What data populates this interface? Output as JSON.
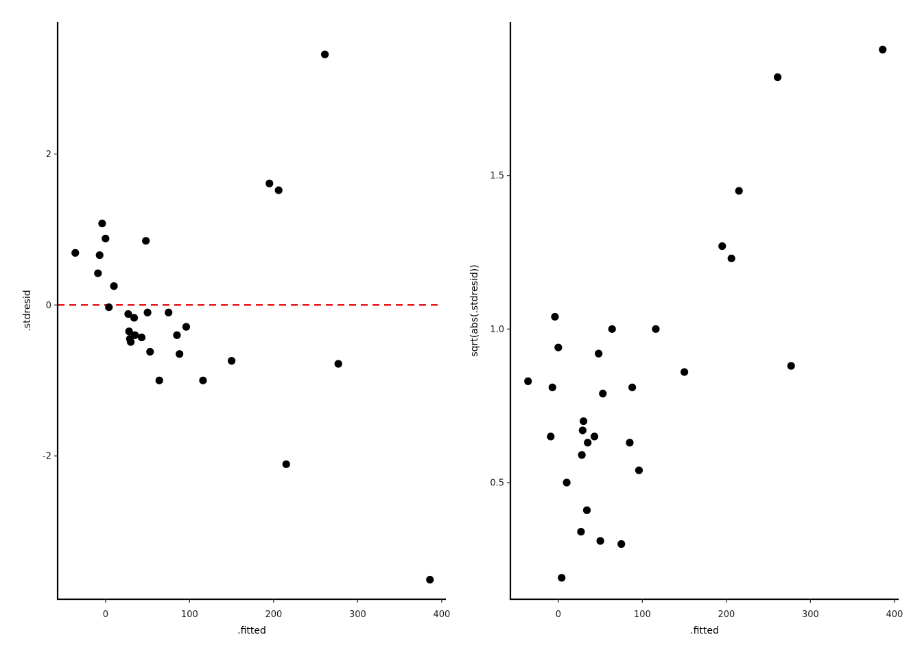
{
  "chart_data": [
    {
      "type": "scatter",
      "xlabel": ".fitted",
      "ylabel": ".stdresid",
      "xlim": [
        -57,
        405
      ],
      "ylim": [
        -3.9,
        3.75
      ],
      "xticks": [
        0,
        100,
        200,
        300,
        400
      ],
      "yticks": [
        -2,
        0,
        2
      ],
      "reference_line": {
        "y": 0,
        "style": "dashed",
        "color": "#e8181c"
      },
      "point_color": "#000000",
      "x": [
        -36,
        -9,
        -7,
        -4,
        0,
        4,
        10,
        27,
        28,
        29,
        30,
        34,
        35,
        43,
        48,
        50,
        53,
        64,
        75,
        85,
        88,
        96,
        116,
        150,
        195,
        206,
        215,
        261,
        277,
        386
      ],
      "y": [
        0.69,
        0.42,
        0.66,
        1.08,
        0.88,
        -0.03,
        0.25,
        -0.12,
        -0.35,
        -0.45,
        -0.49,
        -0.17,
        -0.4,
        -0.43,
        0.85,
        -0.1,
        -0.62,
        -1.0,
        -0.1,
        -0.4,
        -0.65,
        -0.29,
        -1.0,
        -0.74,
        1.61,
        1.52,
        -2.11,
        3.32,
        -0.78,
        -3.64
      ]
    },
    {
      "type": "scatter",
      "xlabel": ".fitted",
      "ylabel": "sqrt(abs(.stdresid))",
      "xlim": [
        -57,
        405
      ],
      "ylim": [
        0.12,
        2.0
      ],
      "xticks": [
        0,
        100,
        200,
        300,
        400
      ],
      "yticks": [
        0.5,
        1.0,
        1.5
      ],
      "yticklabels": [
        "0.5",
        "1.0",
        "1.5"
      ],
      "point_color": "#000000",
      "x": [
        -36,
        -9,
        -7,
        -4,
        0,
        4,
        10,
        27,
        28,
        29,
        30,
        34,
        35,
        43,
        48,
        50,
        53,
        64,
        75,
        85,
        88,
        96,
        116,
        150,
        195,
        206,
        215,
        261,
        277,
        386
      ],
      "y": [
        0.83,
        0.65,
        0.81,
        1.04,
        0.94,
        0.19,
        0.5,
        0.34,
        0.59,
        0.67,
        0.7,
        0.41,
        0.63,
        0.65,
        0.92,
        0.31,
        0.79,
        1.0,
        0.3,
        0.63,
        0.81,
        0.54,
        1.0,
        0.86,
        1.27,
        1.23,
        1.45,
        1.82,
        0.88,
        1.91
      ]
    }
  ]
}
